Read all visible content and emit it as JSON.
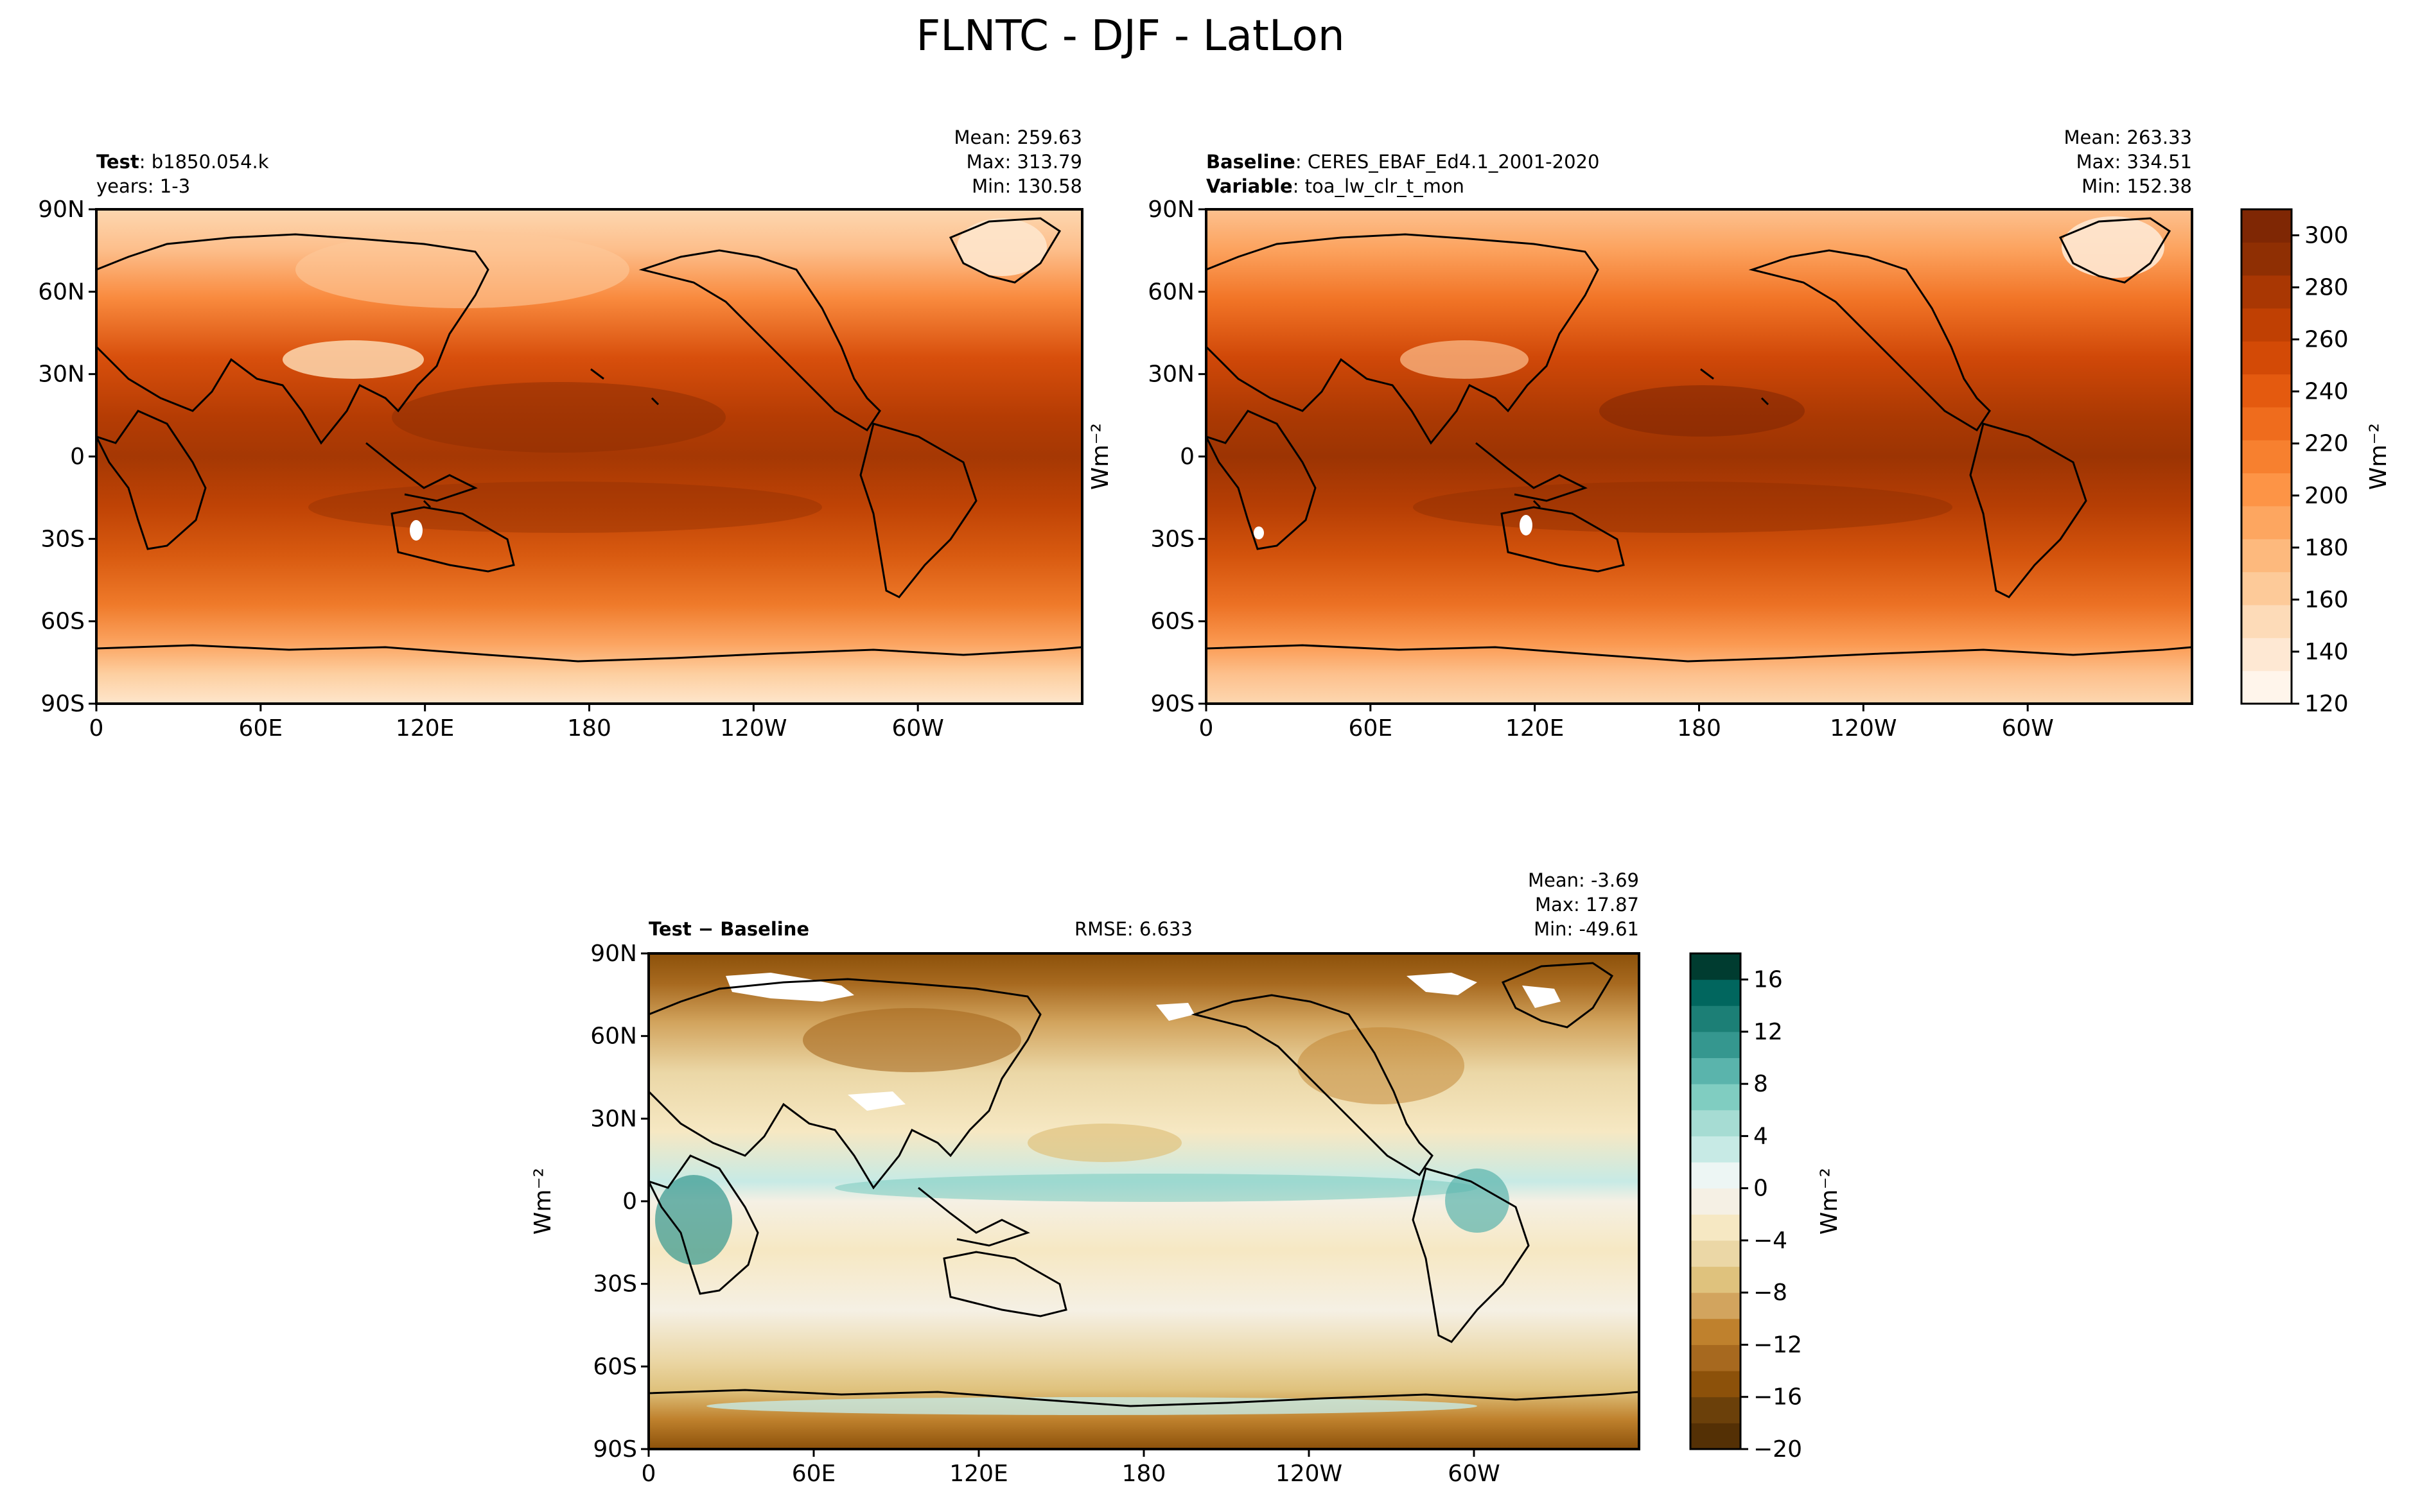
{
  "figure": {
    "title": "FLNTC - DJF - LatLon"
  },
  "colors": {
    "orange_ramp": [
      "#fff5eb",
      "#fee8d3",
      "#fddbb8",
      "#fdca99",
      "#fdb97d",
      "#fda660",
      "#fd9446",
      "#f7802f",
      "#ef6c1d",
      "#e45a0f",
      "#d34a06",
      "#c04003",
      "#a93703",
      "#8f2f03",
      "#7f2704"
    ],
    "diff_ramp": [
      "#543005",
      "#6b400a",
      "#8c510a",
      "#a7691f",
      "#bf812d",
      "#d2a45e",
      "#dfc27d",
      "#ebd7a6",
      "#f6e8c3",
      "#f5f0e4",
      "#edf6f4",
      "#c7eae5",
      "#a6dcd3",
      "#80cdc1",
      "#5ab4ac",
      "#35978f",
      "#1c7f76",
      "#01665e",
      "#003c30"
    ],
    "land_outline": "#000000",
    "missing": "#ffffff"
  },
  "panels": {
    "test": {
      "label_bold": "Test",
      "label_value": "b1850.054.k",
      "label_line2": "years: 1-3",
      "stats": [
        "Mean: 259.63",
        "Max: 313.79",
        "Min: 130.58"
      ]
    },
    "baseline": {
      "label_bold": "Baseline",
      "label_value": "CERES_EBAF_Ed4.1_2001-2020",
      "label_bold2": "Variable",
      "label_value2": "toa_lw_clr_t_mon",
      "stats": [
        "Mean: 263.33",
        "Max: 334.51",
        "Min: 152.38"
      ],
      "ylabel": "Wm⁻²"
    },
    "diff": {
      "label_bold": "Test − Baseline",
      "rmse": "RMSE: 6.633",
      "stats": [
        "Mean: -3.69",
        "Max: 17.87",
        "Min: -49.61"
      ],
      "ylabel": "Wm⁻²"
    }
  },
  "axes": {
    "lat_ticks": [
      "90N",
      "60N",
      "30N",
      "0",
      "30S",
      "60S",
      "90S"
    ],
    "lon_ticks": [
      "0",
      "60E",
      "120E",
      "180",
      "120W",
      "60W"
    ]
  },
  "colorbars": {
    "top": {
      "ticks": [
        "120",
        "140",
        "160",
        "180",
        "200",
        "220",
        "240",
        "260",
        "280",
        "300"
      ],
      "label": "Wm⁻²"
    },
    "diff": {
      "ticks": [
        "−20",
        "−16",
        "−12",
        "−8",
        "−4",
        "0",
        "4",
        "8",
        "12",
        "16"
      ],
      "label": "Wm⁻²"
    }
  },
  "chart_data": [
    {
      "type": "heatmap",
      "title": "Test",
      "xlabel": "",
      "ylabel": "",
      "x_range": [
        0,
        360
      ],
      "y_range": [
        -90,
        90
      ],
      "value_range": [
        120,
        310
      ],
      "stats": {
        "mean": 259.63,
        "max": 313.79,
        "min": 130.58
      }
    },
    {
      "type": "heatmap",
      "title": "Baseline",
      "xlabel": "",
      "ylabel": "Wm⁻²",
      "x_range": [
        0,
        360
      ],
      "y_range": [
        -90,
        90
      ],
      "value_range": [
        120,
        310
      ],
      "stats": {
        "mean": 263.33,
        "max": 334.51,
        "min": 152.38
      }
    },
    {
      "type": "heatmap",
      "title": "Test − Baseline",
      "xlabel": "",
      "ylabel": "Wm⁻²",
      "x_range": [
        0,
        360
      ],
      "y_range": [
        -90,
        90
      ],
      "value_range": [
        -20,
        18
      ],
      "stats": {
        "mean": -3.69,
        "max": 17.87,
        "min": -49.61,
        "rmse": 6.633
      }
    }
  ]
}
